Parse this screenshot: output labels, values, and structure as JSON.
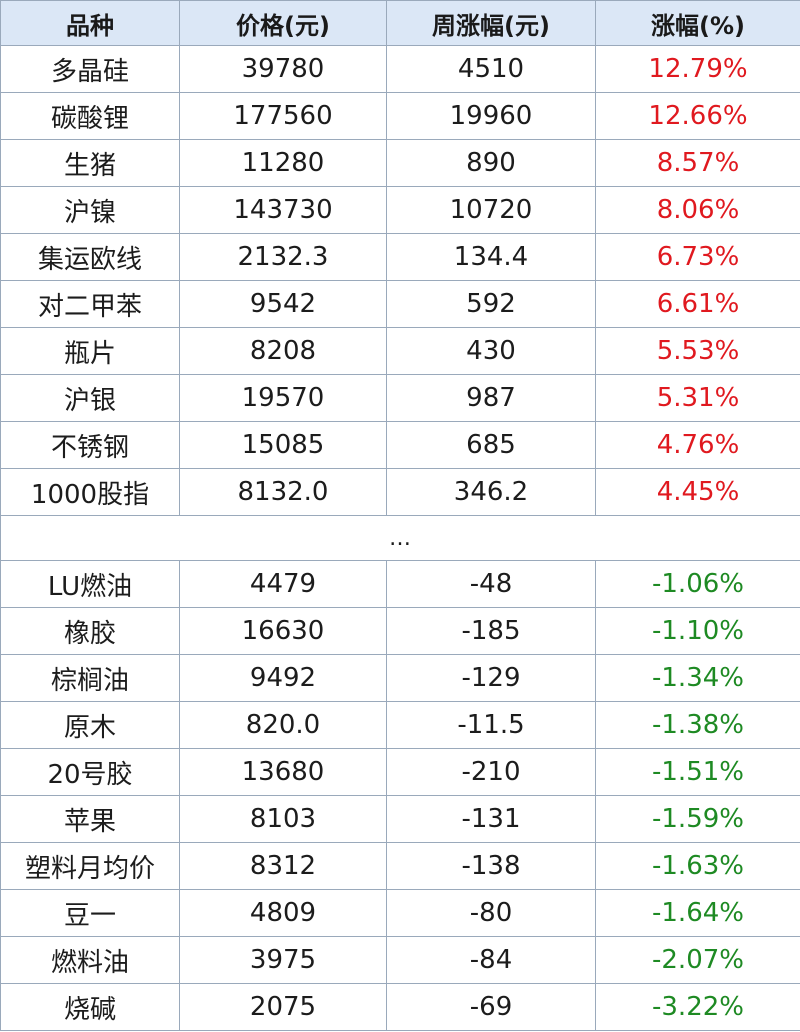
{
  "table": {
    "headers": [
      "品种",
      "价格(元)",
      "周涨幅(元)",
      "涨幅(%)"
    ],
    "up_color": "#e0191f",
    "down_color": "#1e8a23",
    "top_rows": [
      {
        "name": "多晶硅",
        "price": "39780",
        "weekly_change": "4510",
        "pct": "12.79%"
      },
      {
        "name": "碳酸锂",
        "price": "177560",
        "weekly_change": "19960",
        "pct": "12.66%"
      },
      {
        "name": "生猪",
        "price": "11280",
        "weekly_change": "890",
        "pct": "8.57%"
      },
      {
        "name": "沪镍",
        "price": "143730",
        "weekly_change": "10720",
        "pct": "8.06%"
      },
      {
        "name": "集运欧线",
        "price": "2132.3",
        "weekly_change": "134.4",
        "pct": "6.73%"
      },
      {
        "name": "对二甲苯",
        "price": "9542",
        "weekly_change": "592",
        "pct": "6.61%"
      },
      {
        "name": "瓶片",
        "price": "8208",
        "weekly_change": "430",
        "pct": "5.53%"
      },
      {
        "name": "沪银",
        "price": "19570",
        "weekly_change": "987",
        "pct": "5.31%"
      },
      {
        "name": "不锈钢",
        "price": "15085",
        "weekly_change": "685",
        "pct": "4.76%"
      },
      {
        "name": "1000股指",
        "price": "8132.0",
        "weekly_change": "346.2",
        "pct": "4.45%"
      }
    ],
    "separator": "…",
    "bottom_rows": [
      {
        "name": "LU燃油",
        "price": "4479",
        "weekly_change": "-48",
        "pct": "-1.06%"
      },
      {
        "name": "橡胶",
        "price": "16630",
        "weekly_change": "-185",
        "pct": "-1.10%"
      },
      {
        "name": "棕榈油",
        "price": "9492",
        "weekly_change": "-129",
        "pct": "-1.34%"
      },
      {
        "name": "原木",
        "price": "820.0",
        "weekly_change": "-11.5",
        "pct": "-1.38%"
      },
      {
        "name": "20号胶",
        "price": "13680",
        "weekly_change": "-210",
        "pct": "-1.51%"
      },
      {
        "name": "苹果",
        "price": "8103",
        "weekly_change": "-131",
        "pct": "-1.59%"
      },
      {
        "name": "塑料月均价",
        "price": "8312",
        "weekly_change": "-138",
        "pct": "-1.63%"
      },
      {
        "name": "豆一",
        "price": "4809",
        "weekly_change": "-80",
        "pct": "-1.64%"
      },
      {
        "name": "燃料油",
        "price": "3975",
        "weekly_change": "-84",
        "pct": "-2.07%"
      },
      {
        "name": "烧碱",
        "price": "2075",
        "weekly_change": "-69",
        "pct": "-3.22%"
      }
    ]
  }
}
